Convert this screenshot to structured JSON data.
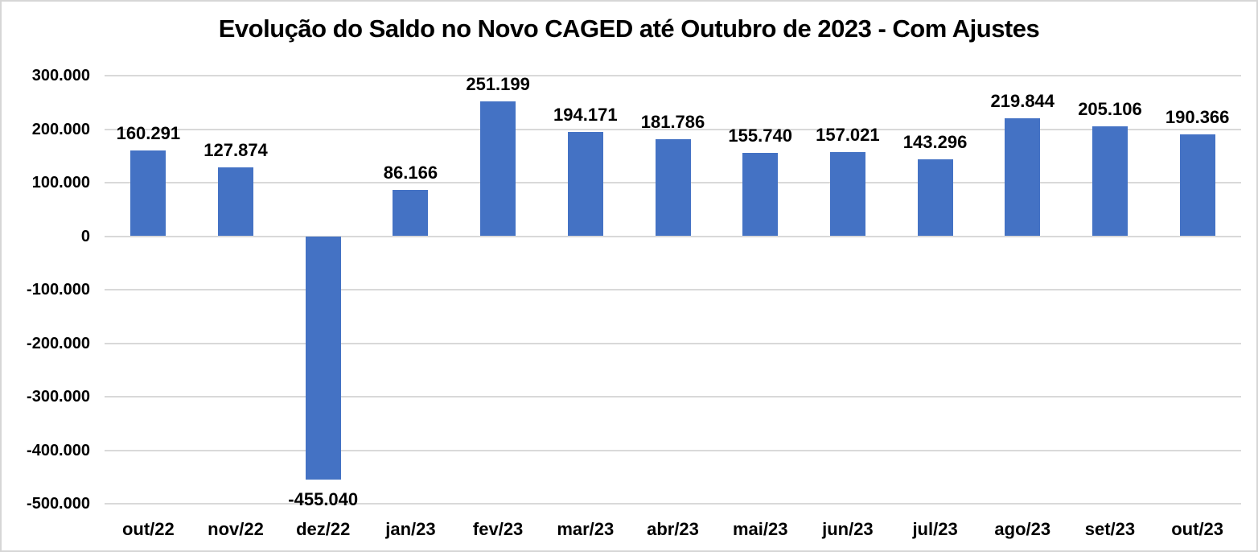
{
  "chart_data": {
    "type": "bar",
    "title": "Evolução do Saldo no Novo CAGED até Outubro de 2023 - Com Ajustes",
    "categories": [
      "out/22",
      "nov/22",
      "dez/22",
      "jan/23",
      "fev/23",
      "mar/23",
      "abr/23",
      "mai/23",
      "jun/23",
      "jul/23",
      "ago/23",
      "set/23",
      "out/23"
    ],
    "values": [
      160291,
      127874,
      -455040,
      86166,
      251199,
      194171,
      181786,
      155740,
      157021,
      143296,
      219844,
      205106,
      190366
    ],
    "data_labels": [
      "160.291",
      "127.874",
      "-455.040",
      "86.166",
      "251.199",
      "194.171",
      "181.786",
      "155.740",
      "157.021",
      "143.296",
      "219.844",
      "205.106",
      "190.366"
    ],
    "xlabel": "",
    "ylabel": "",
    "ylim": [
      -500000,
      300000
    ],
    "ytick_step": 100000,
    "ytick_labels": [
      "300.000",
      "200.000",
      "100.000",
      "0",
      "-100.000",
      "-200.000",
      "-300.000",
      "-400.000",
      "-500.000"
    ],
    "grid": true,
    "legend": "none",
    "bar_color": "#4472C4",
    "gridline_color": "#D9D9D9",
    "text_color": "#000000",
    "background_color": "#FFFFFF"
  }
}
